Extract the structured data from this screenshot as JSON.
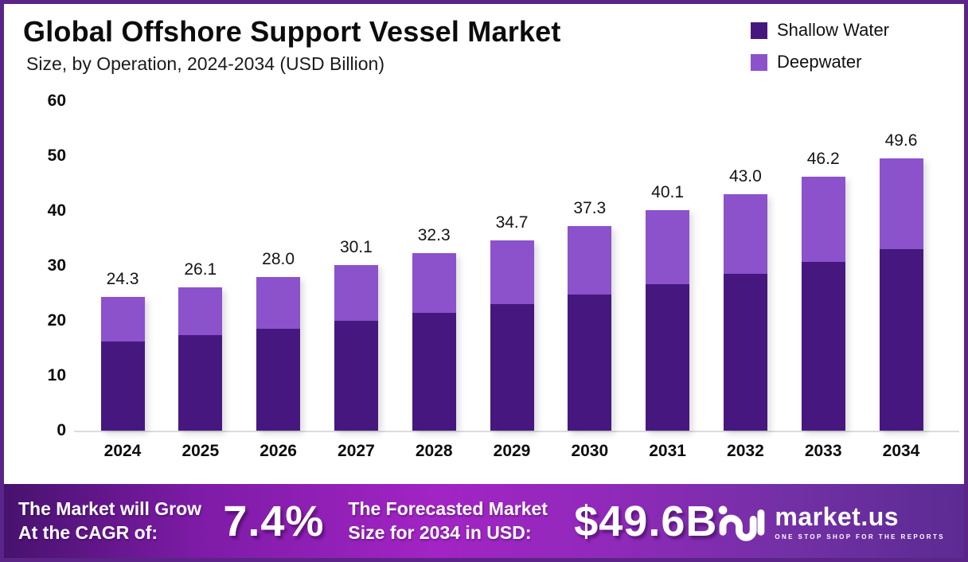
{
  "header": {
    "title": "Global Offshore Support Vessel Market",
    "subtitle": "Size, by Operation, 2024-2034 (USD Billion)"
  },
  "legend": [
    {
      "label": "Shallow Water",
      "color": "#46187f"
    },
    {
      "label": "Deepwater",
      "color": "#8b52cc"
    }
  ],
  "chart_data": {
    "type": "bar",
    "stacked": true,
    "title": "Global Offshore Support Vessel Market Size, by Operation, 2024-2034 (USD Billion)",
    "categories": [
      "2024",
      "2025",
      "2026",
      "2027",
      "2028",
      "2029",
      "2030",
      "2031",
      "2032",
      "2033",
      "2034"
    ],
    "series": [
      {
        "name": "Shallow Water",
        "color": "#46187f",
        "values": [
          16.2,
          17.4,
          18.6,
          20.0,
          21.5,
          23.1,
          24.8,
          26.7,
          28.6,
          30.7,
          33.0
        ]
      },
      {
        "name": "Deepwater",
        "color": "#8b52cc",
        "values": [
          8.1,
          8.7,
          9.4,
          10.1,
          10.8,
          11.6,
          12.5,
          13.4,
          14.4,
          15.5,
          16.6
        ]
      }
    ],
    "totals": [
      "24.3",
      "26.1",
      "28.0",
      "30.1",
      "32.3",
      "34.7",
      "37.3",
      "40.1",
      "43.0",
      "46.2",
      "49.6"
    ],
    "xlabel": "",
    "ylabel": "",
    "ylim": [
      0,
      60
    ],
    "yticks": [
      0,
      10,
      20,
      30,
      40,
      50,
      60
    ],
    "grid": false,
    "legend_position": "top-right"
  },
  "banner": {
    "grow_line1": "The Market will Grow",
    "grow_line2": "At the CAGR of:",
    "cagr_value": "7.4%",
    "forecast_line1": "The Forecasted Market",
    "forecast_line2": "Size for 2034 in USD:",
    "forecast_value": "$49.6B",
    "logo_name": "market.us",
    "logo_tagline": "ONE STOP SHOP FOR THE REPORTS"
  },
  "colors": {
    "border": "#5b2487",
    "shallow_water": "#46187f",
    "deepwater": "#8b52cc",
    "banner_gradient_start": "#47126e",
    "banner_gradient_mid": "#a224c4",
    "banner_gradient_end": "#5b2b92",
    "axis_line": "#dcdcdc"
  }
}
